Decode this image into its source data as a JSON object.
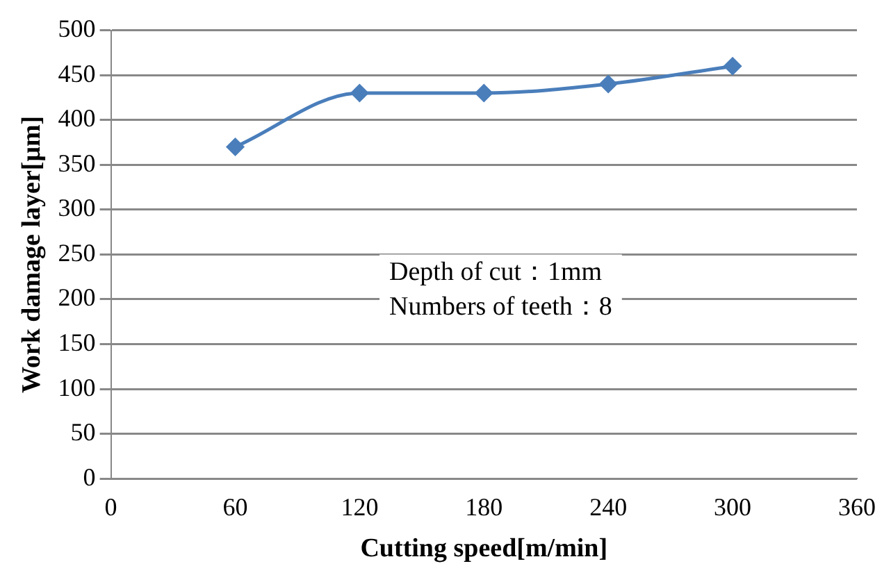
{
  "chart_data": {
    "type": "line",
    "xlabel": "Cutting speed[m/min]",
    "ylabel": "Work damage layer[μm]",
    "x": [
      60,
      120,
      180,
      240,
      300
    ],
    "series": [
      {
        "color": "#4a7ebb",
        "values": [
          370,
          430,
          430,
          440,
          460
        ]
      }
    ],
    "xlim": [
      0,
      360
    ],
    "xticks": [
      0,
      60,
      120,
      180,
      240,
      300,
      360
    ],
    "ylim": [
      0,
      500
    ],
    "yticks": [
      0,
      50,
      100,
      150,
      200,
      250,
      300,
      350,
      400,
      450,
      500
    ],
    "grid": "y",
    "legend": false,
    "marker": "diamond",
    "line_style": "solid",
    "annotations": [
      "Depth of cut：1mm",
      "Numbers of teeth：8"
    ]
  }
}
